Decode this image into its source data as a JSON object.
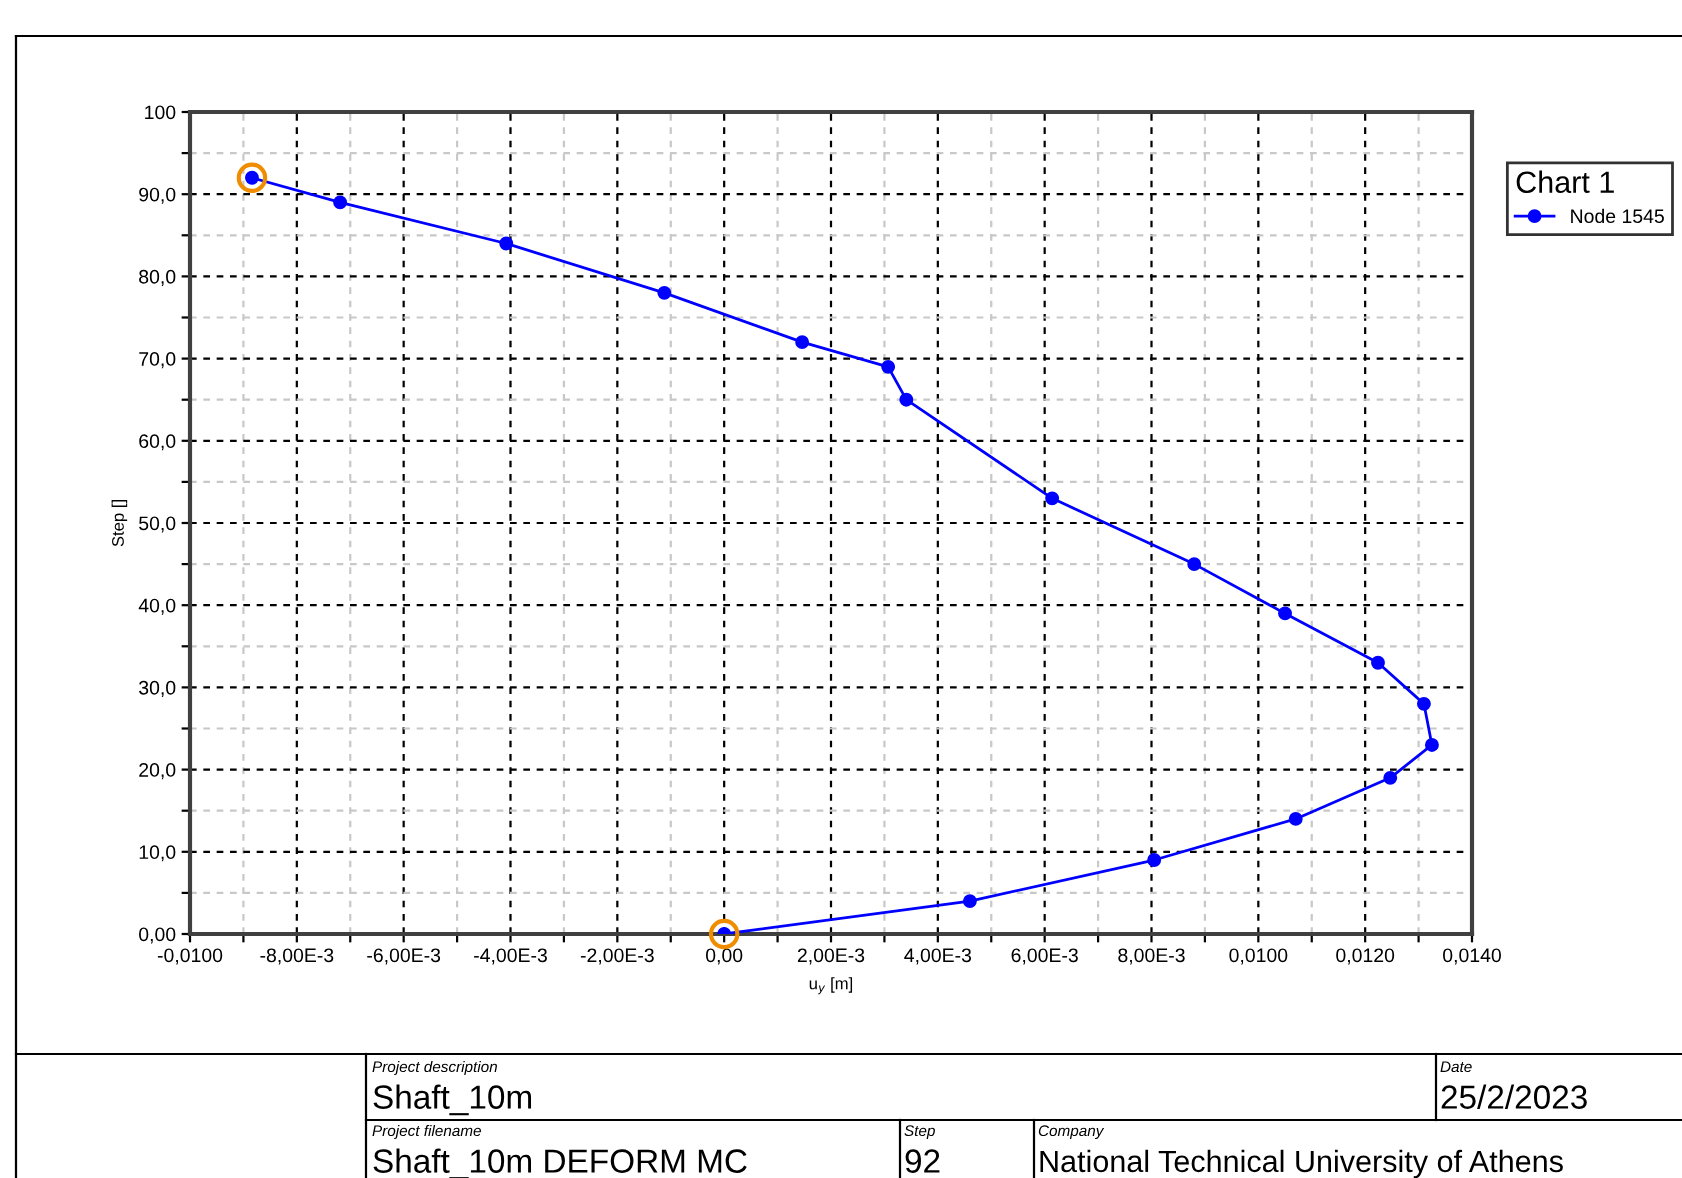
{
  "chart_data": {
    "type": "line",
    "xlabel": "u$_{y}$ [m]",
    "ylabel": "Step []",
    "legend_title": "Chart 1",
    "legend": "top right",
    "series": [
      {
        "name": "Node 1545",
        "color": "#0000ff",
        "marker": "circle",
        "line_style": "solid",
        "x": [
          0,
          0.0046,
          0.00805,
          0.0107,
          0.01247,
          0.01325,
          0.0131,
          0.01224,
          0.0105,
          0.0088,
          0.00614,
          0.00341,
          0.00307,
          0.00146,
          -0.00112,
          -0.00408,
          -0.00719,
          -0.00884
        ],
        "values": [
          0,
          4,
          9,
          14,
          19,
          23,
          28,
          33,
          39,
          45,
          53,
          65,
          69,
          72,
          78,
          84,
          89,
          92
        ]
      },
      {
        "type": "scatter",
        "color": "#f08c00",
        "marker": "circle",
        "x": [
          0,
          -0.00884
        ],
        "values": [
          0,
          92
        ]
      }
    ],
    "xlim": [
      -0.01,
      0.014
    ],
    "ylim": [
      0,
      100
    ],
    "xticks": [
      {
        "value": -0.01,
        "label": "-0,0100"
      },
      {
        "value": -0.009,
        "label": null
      },
      {
        "value": -0.008,
        "label": "-8,00E-3"
      },
      {
        "value": -0.007,
        "label": null
      },
      {
        "value": -0.006,
        "label": "-6,00E-3"
      },
      {
        "value": -0.005,
        "label": null
      },
      {
        "value": -0.004,
        "label": "-4,00E-3"
      },
      {
        "value": -0.003,
        "label": null
      },
      {
        "value": -0.002,
        "label": "-2,00E-3"
      },
      {
        "value": -0.001,
        "label": null
      },
      {
        "value": 0,
        "label": "0,00"
      },
      {
        "value": 0.001,
        "label": null
      },
      {
        "value": 0.002,
        "label": "2,00E-3"
      },
      {
        "value": 0.003,
        "label": null
      },
      {
        "value": 0.004,
        "label": "4,00E-3"
      },
      {
        "value": 0.005,
        "label": null
      },
      {
        "value": 0.006,
        "label": "6,00E-3"
      },
      {
        "value": 0.007,
        "label": null
      },
      {
        "value": 0.008,
        "label": "8,00E-3"
      },
      {
        "value": 0.009,
        "label": null
      },
      {
        "value": 0.01,
        "label": "0,0100"
      },
      {
        "value": 0.011,
        "label": null
      },
      {
        "value": 0.012,
        "label": "0,0120"
      },
      {
        "value": 0.013,
        "label": null
      },
      {
        "value": 0.014,
        "label": "0,0140"
      }
    ],
    "yticks": [
      {
        "value": 0,
        "label": "0,00"
      },
      {
        "value": 5,
        "label": null
      },
      {
        "value": 10,
        "label": "10,0"
      },
      {
        "value": 15,
        "label": null
      },
      {
        "value": 20,
        "label": "20,0"
      },
      {
        "value": 25,
        "label": null
      },
      {
        "value": 30,
        "label": "30,0"
      },
      {
        "value": 35,
        "label": null
      },
      {
        "value": 40,
        "label": "40,0"
      },
      {
        "value": 45,
        "label": null
      },
      {
        "value": 50,
        "label": "50,0"
      },
      {
        "value": 55,
        "label": null
      },
      {
        "value": 60,
        "label": "60,0"
      },
      {
        "value": 65,
        "label": null
      },
      {
        "value": 70,
        "label": "70,0"
      },
      {
        "value": 75,
        "label": null
      },
      {
        "value": 80,
        "label": "80,0"
      },
      {
        "value": 85,
        "label": null
      },
      {
        "value": 90,
        "label": "90,0"
      },
      {
        "value": 95,
        "label": null
      },
      {
        "value": 100,
        "label": "100"
      }
    ],
    "grid": true,
    "annotations": [
      "Project description",
      "Shaft_10m",
      "Date",
      "25/2/2023",
      "Project filename",
      "Shaft_10m DEFORM MC",
      "Step",
      "92",
      "Company",
      "National Technical University of Athens"
    ]
  }
}
